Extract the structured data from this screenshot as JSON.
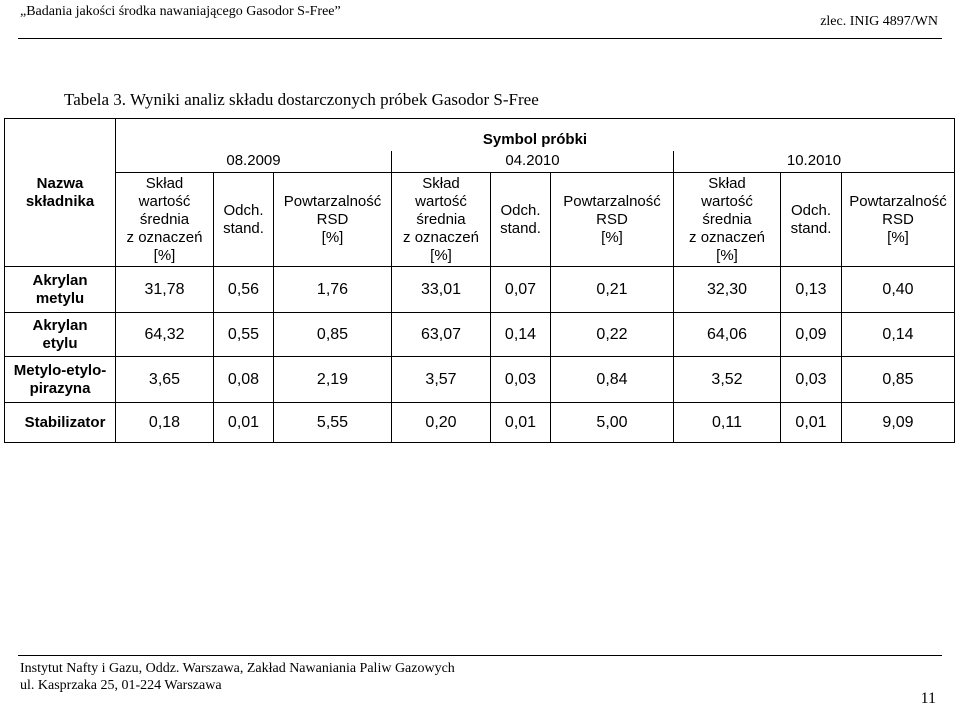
{
  "header": {
    "left": "„Badania jakości środka nawaniającego Gasodor S-Free”",
    "right": "zlec. INIG 4897/WN"
  },
  "caption": "Tabela 3. Wyniki analiz składu dostarczonych próbek Gasodor S-Free",
  "table": {
    "col_component": "Nazwa\nskładnika",
    "symbol_header": "Symbol próbki",
    "dates": [
      "08.2009",
      "04.2010",
      "10.2010"
    ],
    "sub_headers": {
      "mean": "Skład\nwartość\nśrednia\nz oznaczeń\n[%]",
      "std": "Odch.\nstand.",
      "rsd": "Powtarzalność\nRSD\n[%]"
    },
    "rows": [
      {
        "name": "Akrylan\nmetylu",
        "values": [
          "31,78",
          "0,56",
          "1,76",
          "33,01",
          "0,07",
          "0,21",
          "32,30",
          "0,13",
          "0,40"
        ]
      },
      {
        "name": "Akrylan\netylu",
        "values": [
          "64,32",
          "0,55",
          "0,85",
          "63,07",
          "0,14",
          "0,22",
          "64,06",
          "0,09",
          "0,14"
        ]
      },
      {
        "name": "Metylo-etylo-\npirazyna",
        "values": [
          "3,65",
          "0,08",
          "2,19",
          "3,57",
          "0,03",
          "0,84",
          "3,52",
          "0,03",
          "0,85"
        ]
      },
      {
        "name": "Stabilizator",
        "values": [
          "0,18",
          "0,01",
          "5,55",
          "0,20",
          "0,01",
          "5,00",
          "0,11",
          "0,01",
          "9,09"
        ]
      }
    ]
  },
  "footer": {
    "line1": "Instytut Nafty i Gazu, Oddz. Warszawa, Zakład Nawaniania Paliw Gazowych",
    "line2": "ul. Kasprzaka 25, 01-224 Warszawa",
    "page_number": "11"
  }
}
